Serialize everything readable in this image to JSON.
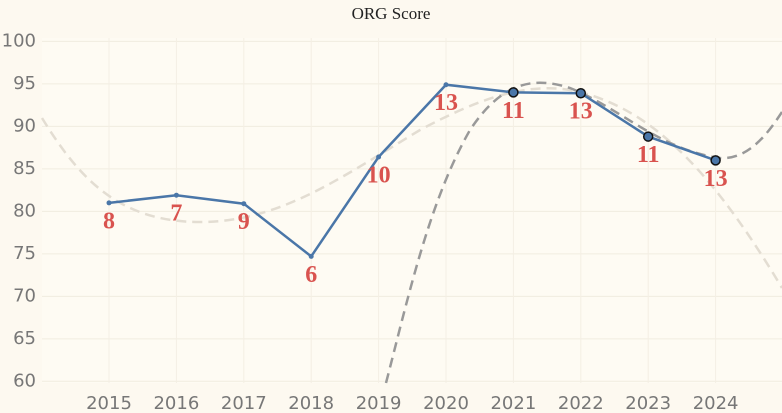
{
  "chart_data": {
    "type": "line",
    "title": "ORG Score",
    "categories": [
      "2015",
      "2016",
      "2017",
      "2018",
      "2019",
      "2020",
      "2021",
      "2022",
      "2023",
      "2024"
    ],
    "series": [
      {
        "name": "ORG Score",
        "color": "#4a76a8",
        "values": [
          81,
          81.9,
          80.9,
          74.7,
          86.4,
          94.9,
          94,
          93.9,
          88.8,
          86
        ],
        "highlighted": [
          false,
          false,
          false,
          false,
          false,
          false,
          true,
          true,
          true,
          true
        ]
      }
    ],
    "point_labels": [
      8,
      7,
      9,
      6,
      10,
      13,
      11,
      13,
      11,
      13
    ],
    "ylim": [
      59.8,
      100.4
    ],
    "yticks": [
      60,
      65,
      70,
      75,
      80,
      85,
      90,
      95,
      100
    ],
    "grid": true
  }
}
